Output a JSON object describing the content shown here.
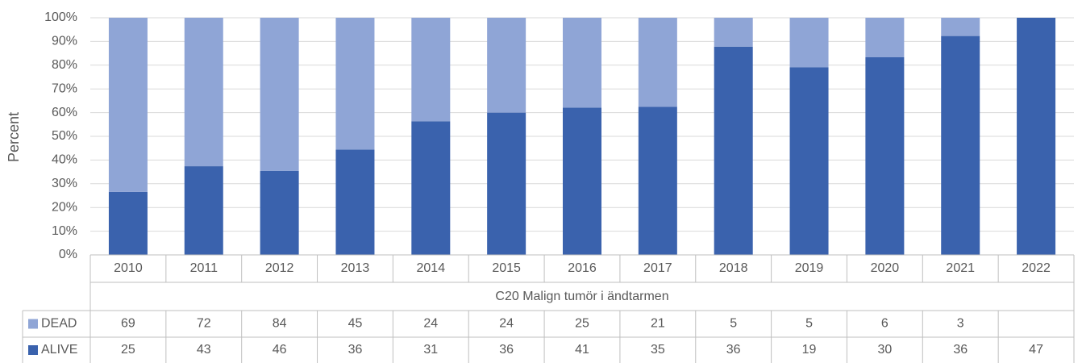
{
  "chart_data": {
    "type": "bar",
    "stacking": "percent",
    "y_label": "Percent",
    "x_group_label": "C20 Malign tumör i ändtarmen",
    "categories": [
      "2010",
      "2011",
      "2012",
      "2013",
      "2014",
      "2015",
      "2016",
      "2017",
      "2018",
      "2019",
      "2020",
      "2021",
      "2022"
    ],
    "series": [
      {
        "name": "DEAD",
        "color": "#8fa5d6",
        "values": [
          69,
          72,
          84,
          45,
          24,
          24,
          25,
          21,
          5,
          5,
          6,
          3,
          null
        ]
      },
      {
        "name": "ALIVE",
        "color": "#3a62ad",
        "values": [
          25,
          43,
          46,
          36,
          31,
          36,
          41,
          35,
          36,
          19,
          30,
          36,
          47
        ]
      }
    ],
    "ylim": [
      0,
      100
    ],
    "yticks": [
      {
        "value": 0,
        "label": "0%"
      },
      {
        "value": 10,
        "label": "10%"
      },
      {
        "value": 20,
        "label": "20%"
      },
      {
        "value": 30,
        "label": "30%"
      },
      {
        "value": 40,
        "label": "40%"
      },
      {
        "value": 50,
        "label": "50%"
      },
      {
        "value": 60,
        "label": "60%"
      },
      {
        "value": 70,
        "label": "70%"
      },
      {
        "value": 80,
        "label": "80%"
      },
      {
        "value": 90,
        "label": "90%"
      },
      {
        "value": 100,
        "label": "100%"
      }
    ],
    "grid": true
  }
}
